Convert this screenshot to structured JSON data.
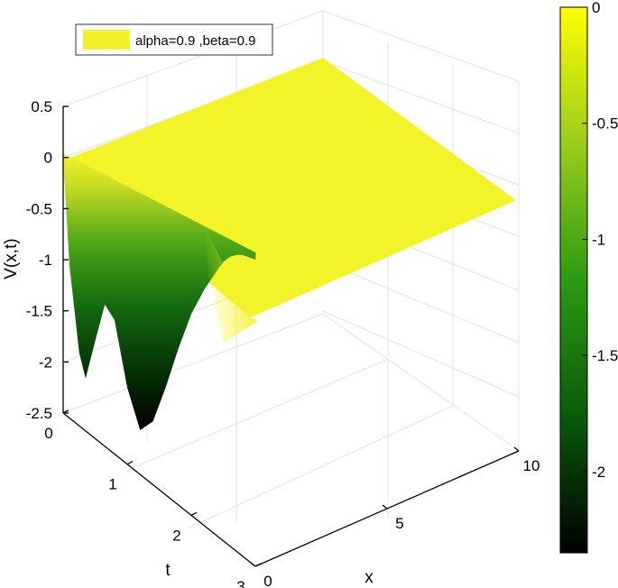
{
  "chart_data": {
    "type": "surface3d",
    "title": "",
    "xlabel": "x",
    "ylabel": "t",
    "zlabel": "V(x,t)",
    "xlim": [
      0,
      10
    ],
    "ylim": [
      0,
      3
    ],
    "zlim": [
      -2.5,
      0.5
    ],
    "x_ticks": [
      "0",
      "5",
      "10"
    ],
    "y_ticks": [
      "0",
      "1",
      "2",
      "3"
    ],
    "z_ticks": [
      "0.5",
      "0",
      "-0.5",
      "-1",
      "-1.5",
      "-2",
      "-2.5"
    ],
    "legend": [
      {
        "label": "alpha=0.9 ,beta=0.9",
        "color": "#f2f22b"
      }
    ],
    "colorbar": {
      "range": [
        -2.35,
        0
      ],
      "ticks": [
        "0",
        "-0.5",
        "-1",
        "-1.5",
        "-2"
      ],
      "tick_values": [
        0,
        -0.5,
        -1,
        -1.5,
        -2
      ],
      "colors": [
        "#000000",
        "#0a5a0a",
        "#2d9a12",
        "#9acc1e",
        "#ffff00"
      ]
    },
    "surface": {
      "plateau_value": 0,
      "edge_profile_t": [
        0,
        0.1,
        0.25,
        0.35,
        0.5,
        0.65,
        0.8,
        1.0,
        1.2,
        1.4,
        1.6,
        1.8,
        2.0,
        2.2,
        2.4,
        2.5,
        2.6,
        2.7,
        2.8,
        3.0
      ],
      "edge_profile_v": [
        0,
        -1.0,
        -1.8,
        -2.02,
        -1.6,
        -1.2,
        -1.3,
        -1.9,
        -2.25,
        -2.1,
        -1.7,
        -1.25,
        -0.85,
        -0.55,
        -0.3,
        -0.18,
        -0.1,
        -0.05,
        -0.02,
        0
      ],
      "min_value": -2.3
    }
  }
}
